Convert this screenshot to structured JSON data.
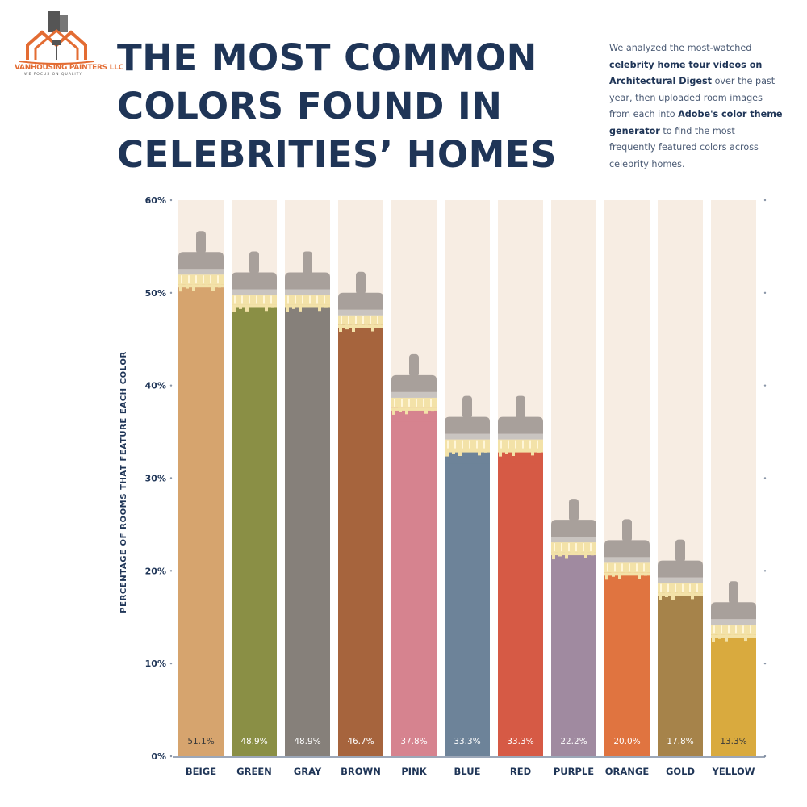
{
  "logo": {
    "name": "VANHOUSING PAINTERS LLC",
    "tagline": "WE FOCUS ON QUALITY"
  },
  "title_lines": [
    "THE MOST COMMON",
    "COLORS FOUND IN",
    "CELEBRITIES’ HOMES"
  ],
  "description": [
    {
      "text": "We analyzed the most-watched ",
      "bold": false
    },
    {
      "text": "celebrity home tour videos on Architectural Digest",
      "bold": true
    },
    {
      "text": " over the past year, then uploaded room images from each into ",
      "bold": false
    },
    {
      "text": "Adobe's color theme generator",
      "bold": true
    },
    {
      "text": " to find the most frequently featured colors across celebrity homes.",
      "bold": false
    }
  ],
  "chart_data": {
    "type": "bar",
    "ylabel": "PERCENTAGE OF ROOMS THAT FEATURE EACH COLOR",
    "ylim": [
      0,
      60
    ],
    "yticks": [
      "0%",
      "10%",
      "20%",
      "30%",
      "40%",
      "50%",
      "60%"
    ],
    "categories": [
      "BEIGE",
      "GREEN",
      "GRAY",
      "BROWN",
      "PINK",
      "BLUE",
      "RED",
      "PURPLE",
      "ORANGE",
      "GOLD",
      "YELLOW"
    ],
    "values": [
      51.1,
      48.9,
      48.9,
      46.7,
      37.8,
      33.3,
      33.3,
      22.2,
      20.0,
      17.8,
      13.3
    ],
    "value_labels": [
      "51.1%",
      "48.9%",
      "48.9%",
      "46.7%",
      "37.8%",
      "33.3%",
      "33.3%",
      "22.2%",
      "20.0%",
      "17.8%",
      "13.3%"
    ],
    "colors": [
      "#d6a46e",
      "#8a8f45",
      "#86807a",
      "#a6643d",
      "#d6838f",
      "#6d8399",
      "#d65a45",
      "#a08aa0",
      "#e07440",
      "#a6834a",
      "#d9aa3e"
    ],
    "label_colors": [
      "#3a3a3a",
      "#ffffff",
      "#ffffff",
      "#ffffff",
      "#ffffff",
      "#ffffff",
      "#ffffff",
      "#ffffff",
      "#ffffff",
      "#ffffff",
      "#3a3a3a"
    ],
    "grid": false,
    "background_column_color": "#f7ede3",
    "brush_color": "#a8a09b",
    "bristle_color": "#f3e2a8"
  }
}
